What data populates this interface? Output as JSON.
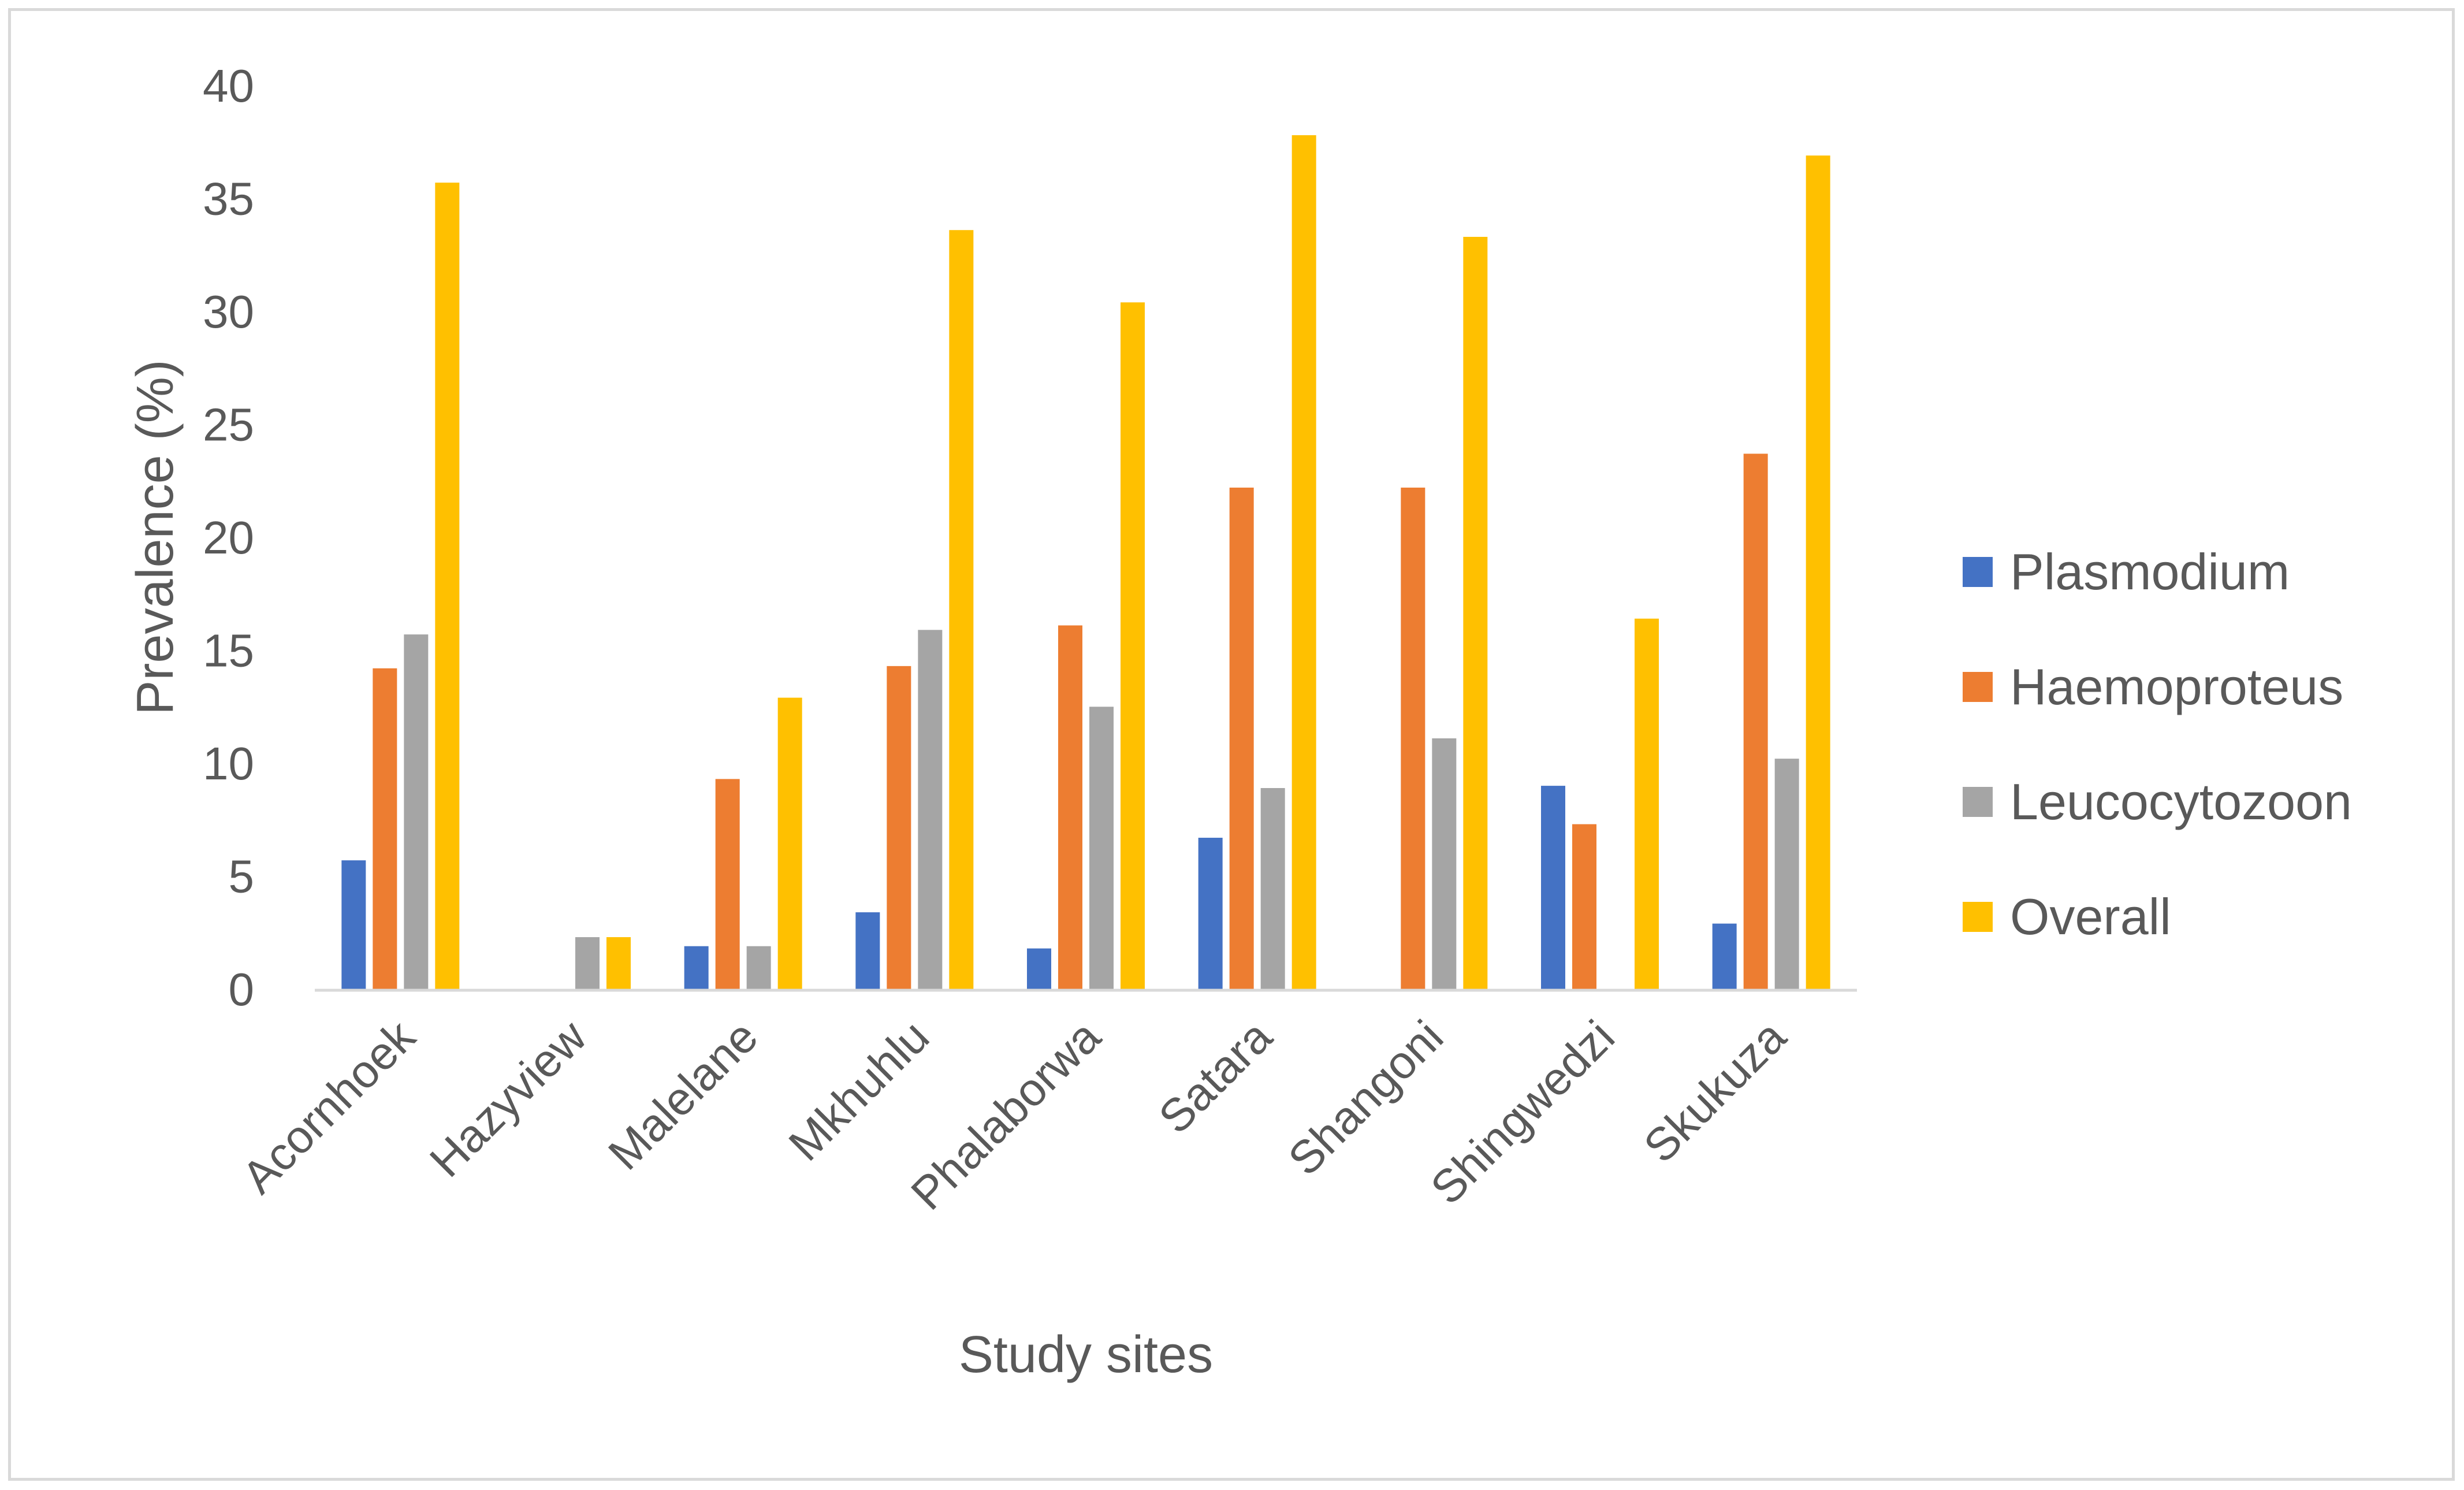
{
  "chart_data": {
    "type": "bar",
    "title": "",
    "xlabel": "Study sites",
    "ylabel": "Prevalence (%)",
    "ylim": [
      0,
      40
    ],
    "yticks": [
      0,
      5,
      10,
      15,
      20,
      25,
      30,
      35,
      40
    ],
    "ytick_labels": [
      "0",
      "5",
      "10",
      "15",
      "20",
      "25",
      "30",
      "35",
      "40"
    ],
    "grid": false,
    "legend_position": "right",
    "categories": [
      "Acornhoek",
      "Hazyview",
      "Malelane",
      "Mkhuhlu",
      "Phalaborwa",
      "Satara",
      "Shangoni",
      "Shingwedzi",
      "Skukuza"
    ],
    "series": [
      {
        "name": "Plasmodium",
        "color": "#4472C4",
        "values": [
          5.7,
          0,
          1.9,
          3.4,
          1.8,
          6.7,
          0,
          9.0,
          2.9
        ]
      },
      {
        "name": "Haemoproteus",
        "color": "#ED7D31",
        "values": [
          14.2,
          0,
          9.3,
          14.3,
          16.1,
          22.2,
          22.2,
          7.3,
          23.7
        ]
      },
      {
        "name": "Leucocytozoon",
        "color": "#A5A5A5",
        "values": [
          15.7,
          2.3,
          1.9,
          15.9,
          12.5,
          8.9,
          11.1,
          0,
          10.2
        ]
      },
      {
        "name": "Overall",
        "color": "#FFC000",
        "values": [
          35.7,
          2.3,
          12.9,
          33.6,
          30.4,
          37.8,
          33.3,
          16.4,
          36.9
        ]
      }
    ]
  }
}
